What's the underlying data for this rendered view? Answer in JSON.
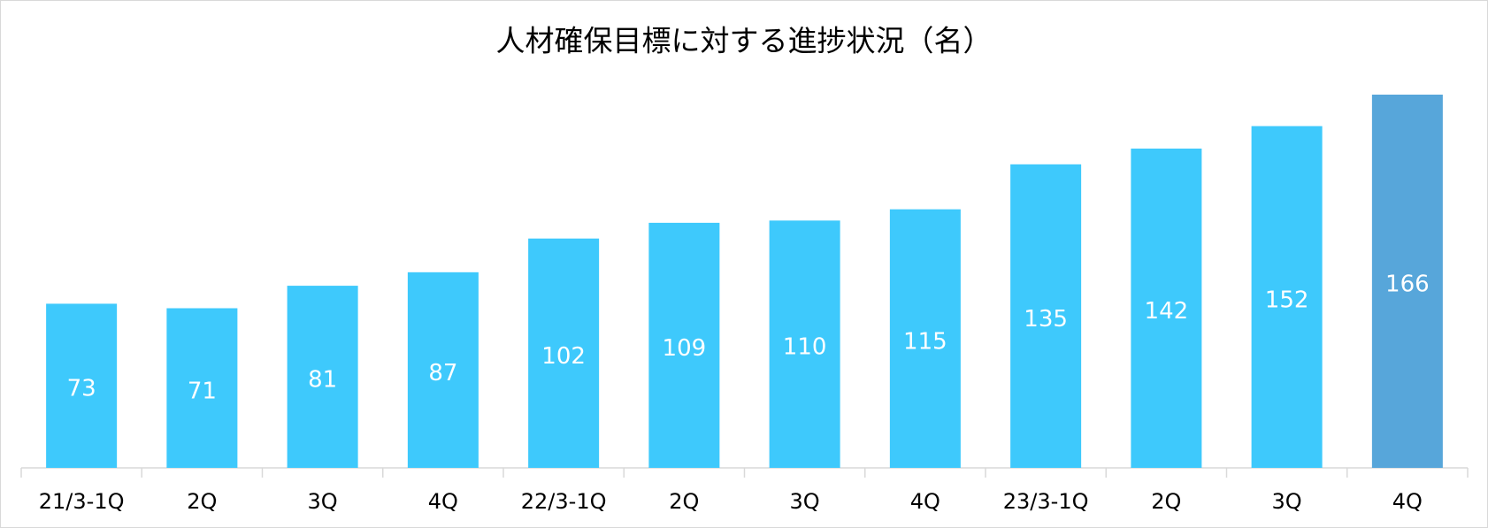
{
  "chart_data": {
    "type": "bar",
    "title": "人材確保目標に対する進捗状況（名）",
    "categories": [
      "21/3-1Q",
      "2Q",
      "3Q",
      "4Q",
      "22/3-1Q",
      "2Q",
      "3Q",
      "4Q",
      "23/3-1Q",
      "2Q",
      "3Q",
      "4Q"
    ],
    "values": [
      73,
      71,
      81,
      87,
      102,
      109,
      110,
      115,
      135,
      142,
      152,
      166
    ],
    "colors": [
      "#3ec9fc",
      "#3ec9fc",
      "#3ec9fc",
      "#3ec9fc",
      "#3ec9fc",
      "#3ec9fc",
      "#3ec9fc",
      "#3ec9fc",
      "#3ec9fc",
      "#3ec9fc",
      "#3ec9fc",
      "#57a6da"
    ]
  }
}
